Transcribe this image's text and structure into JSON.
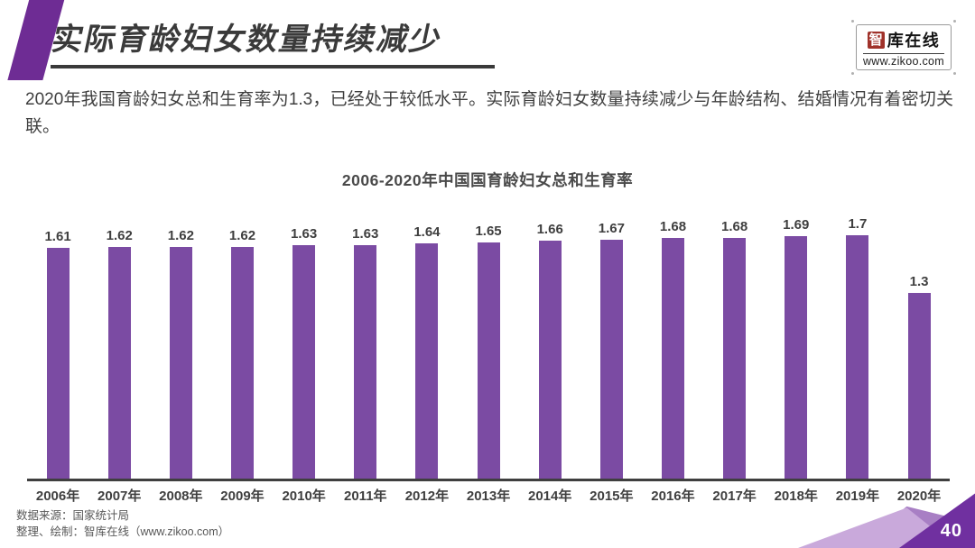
{
  "slide": {
    "title": "实际育龄妇女数量持续减少",
    "page_number": "40"
  },
  "logo": {
    "brand_first_char": "智",
    "brand_rest": "库在线",
    "website": "www.zikoo.com"
  },
  "intro": {
    "text": "2020年我国育龄妇女总和生育率为1.3，已经处于较低水平。实际育龄妇女数量持续减少与年龄结构、结婚情况有着密切关联。"
  },
  "chart_data": {
    "type": "bar",
    "title": "2006-2020年中国国育龄妇女总和生育率",
    "categories": [
      "2006年",
      "2007年",
      "2008年",
      "2009年",
      "2010年",
      "2011年",
      "2012年",
      "2013年",
      "2014年",
      "2015年",
      "2016年",
      "2017年",
      "2018年",
      "2019年",
      "2020年"
    ],
    "values": [
      1.61,
      1.62,
      1.62,
      1.62,
      1.63,
      1.63,
      1.64,
      1.65,
      1.66,
      1.67,
      1.68,
      1.68,
      1.69,
      1.7,
      1.3
    ],
    "xlabel": "",
    "ylabel": "",
    "ylim": [
      0,
      1.83
    ],
    "grid": false,
    "legend": false,
    "data_labels": true,
    "bar_color": "#7B4BA3"
  },
  "footer": {
    "source": "数据来源：国家统计局",
    "credit": "整理、绘制：智库在线（www.zikoo.com）"
  },
  "colors": {
    "accent_purple": "#6E2C94",
    "bar_purple": "#7B4BA3",
    "title_text": "#3A3A3A",
    "body_text": "#3F3F3F",
    "axis": "#3F3F3F",
    "footer_text": "#595959",
    "logo_red": "#A0322A",
    "corner_light": "#C9A9DB",
    "corner_mid": "#A87FC4",
    "corner_dark": "#7030A0"
  }
}
